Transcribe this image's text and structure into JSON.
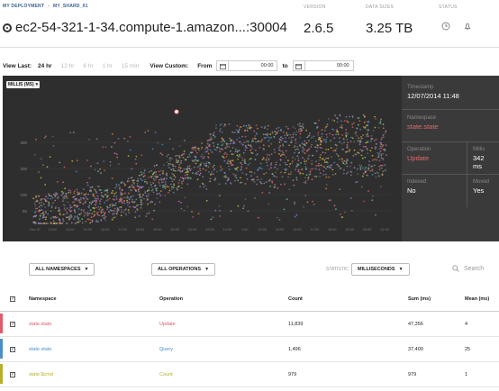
{
  "breadcrumb": [
    "MY DEPLOYMENT",
    "MY_SHARD_01"
  ],
  "host": "ec2-54-321-1-34.compute-1.amazon...:30004",
  "meta": {
    "version_label": "VERSION",
    "version": "2.6.5",
    "datasize_label": "DATA SIZES",
    "datasize": "3.25 TB",
    "status_label": "STATUS"
  },
  "view": {
    "last_label": "View Last:",
    "options": [
      "24 hr",
      "12 hr",
      "6 hr",
      "1 hr",
      "15 min"
    ],
    "active": "24 hr",
    "custom_label": "View Custom:",
    "from_label": "From",
    "from_time": "00:00",
    "to_label": "to",
    "to_time": "00:00"
  },
  "chart": {
    "metric_tag": "MILLIS (MS)",
    "y_ticks": [
      "50",
      "100",
      "200",
      "300"
    ],
    "x_ticks": [
      "Dec 07",
      "13:00",
      "14:00",
      "15:00",
      "16:00",
      "17:00",
      "18:00",
      "19:00",
      "20:00",
      "21:00",
      "22:00",
      "12:00",
      "1:00",
      "14:00",
      "15:00",
      "16:00",
      "17:00",
      "18:00",
      "19:00",
      "20:00",
      "21:00"
    ],
    "point_colors": [
      "#e05a5a",
      "#4a90c8",
      "#c8c43a",
      "#a07ad0",
      "#e08a3a",
      "#6ac0a0",
      "#d070b0",
      "#8a8a8a",
      "#b0b0b0"
    ]
  },
  "detail": {
    "timestamp_label": "Timestamp",
    "timestamp": "12/07/2014 11:48",
    "namespace_label": "Namespace",
    "namespace": "state.state",
    "operation_label": "Operation",
    "operation": "Update",
    "millis_label": "Millis",
    "millis": "342 ms",
    "indexed_label": "Indexed",
    "indexed": "No",
    "moved_label": "Moved",
    "moved": "Yes"
  },
  "filters": {
    "namespaces": "ALL NAMESPACES",
    "operations": "ALL OPERATIONS",
    "statistic_label": "STATISTIC",
    "statistic": "MILLISECONDS",
    "search_placeholder": "Search"
  },
  "table": {
    "headers": {
      "namespace": "Namespace",
      "operation": "Operation",
      "count": "Count",
      "sum": "Sum (ms)",
      "mean": "Mean (ms)"
    },
    "rows": [
      {
        "namespace": "state.state",
        "operation": "Update",
        "count": "11,839",
        "sum": "47,356",
        "mean": "4",
        "color": "#e05a6a"
      },
      {
        "namespace": "state.state",
        "operation": "Query",
        "count": "1,496",
        "sum": "37,400",
        "mean": "25",
        "color": "#4a90c8"
      },
      {
        "namespace": "state.$cmd",
        "operation": "Count",
        "count": "979",
        "sum": "979",
        "mean": "1",
        "color": "#b6b02a"
      }
    ]
  }
}
